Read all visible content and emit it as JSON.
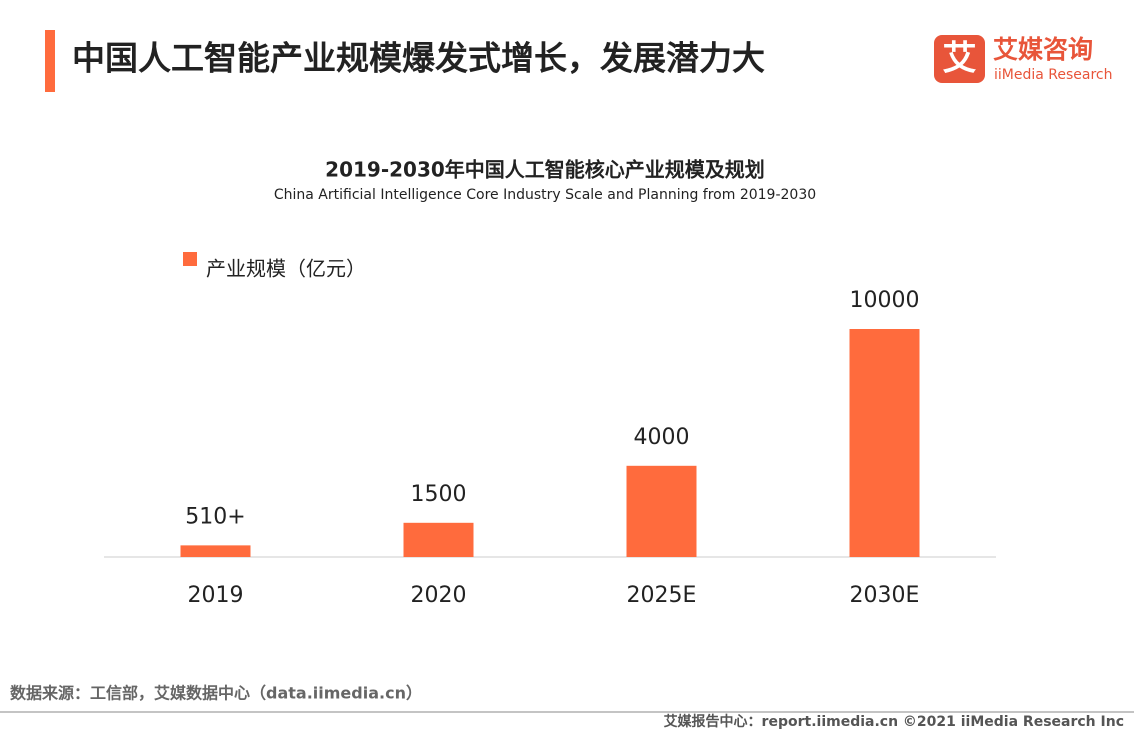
{
  "header": {
    "title": "中国人工智能产业规模爆发式增长，发展潜力大"
  },
  "logo": {
    "icon": "艾",
    "name": "艾媒咨询",
    "english": "iiMedia Research"
  },
  "chart_data": {
    "type": "bar",
    "title": "2019-2030年中国人工智能核心产业规模及规划",
    "subtitle": "China Artificial Intelligence Core Industry Scale and Planning from 2019-2030",
    "categories": [
      "2019",
      "2020",
      "2025E",
      "2030E"
    ],
    "series": [
      {
        "name": "产业规模（亿元）",
        "color": "#ff6b3d",
        "values": [
          510,
          1500,
          4000,
          10000
        ],
        "value_labels": [
          "510+",
          "1500",
          "4000",
          "10000"
        ]
      }
    ],
    "legend": "top-left"
  },
  "source": "数据来源：工信部，艾媒数据中心（data.iimedia.cn）",
  "footer": "艾媒报告中心：report.iimedia.cn  ©2021  iiMedia Research  Inc"
}
